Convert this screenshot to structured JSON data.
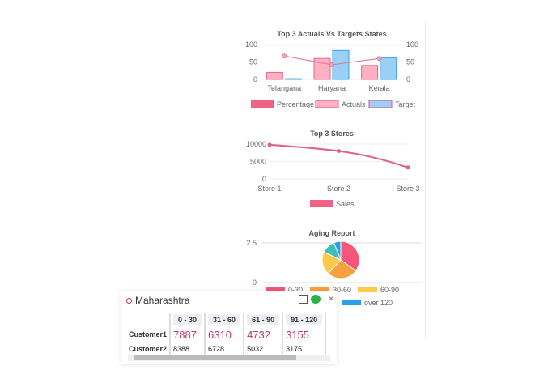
{
  "chart_data": [
    {
      "type": "bar",
      "title": "Top 3 Actuals Vs Targets States",
      "categories": [
        "Telangana",
        "Haryana",
        "Kerala"
      ],
      "series": [
        {
          "name": "Percentage",
          "type": "line",
          "values": [
            67,
            42,
            60
          ]
        },
        {
          "name": "Actuals",
          "values": [
            20,
            60,
            40
          ]
        },
        {
          "name": "Target",
          "values": [
            2,
            83,
            62
          ]
        }
      ],
      "ylim": [
        0,
        100
      ],
      "y_ticks": [
        0,
        50,
        100
      ],
      "legend": "bottom",
      "colors": {
        "Percentage": "#f06384",
        "Actuals": "#ffb1c1",
        "Target": "#9ad0f5"
      }
    },
    {
      "type": "line",
      "title": "Top 3 Stores",
      "categories": [
        "Store 1",
        "Store 2",
        "Store 3"
      ],
      "series": [
        {
          "name": "Sales",
          "values": [
            9800,
            8000,
            3300
          ]
        }
      ],
      "ylim": [
        0,
        10000
      ],
      "y_ticks": [
        0,
        5000,
        10000
      ],
      "legend": "bottom",
      "color": "#e0608a"
    },
    {
      "type": "pie",
      "title": "Aging Report",
      "labels": [
        "0-30",
        "30-60",
        "60-90",
        "",
        "over 120"
      ],
      "values": [
        35,
        27,
        20,
        12,
        6
      ],
      "colors": [
        "#f7557a",
        "#f9a03f",
        "#fcc94a",
        "#3dbfb3",
        "#2f9ee8"
      ],
      "y_ticks": [
        0,
        2.5
      ],
      "legend": "bottom"
    }
  ],
  "popup": {
    "title": "Maharashtra",
    "close": "×",
    "columns": [
      "0 - 30",
      "31 - 60",
      "61 - 90",
      "91 - 120"
    ],
    "rows": [
      {
        "name": "Customer1",
        "values": [
          "7887",
          "6310",
          "4732",
          "3155"
        ]
      },
      {
        "name": "Customer2",
        "values": [
          "8388",
          "6728",
          "5032",
          "3175"
        ]
      }
    ]
  }
}
